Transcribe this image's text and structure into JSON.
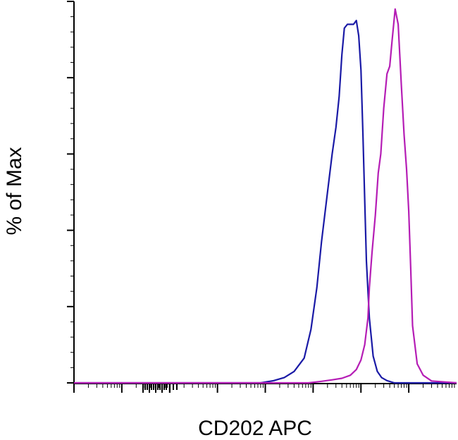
{
  "chart_data": {
    "type": "line",
    "title": "",
    "xlabel": "CD202 APC",
    "ylabel": "% of Max",
    "x_scale": "log",
    "xlim": [
      0.01,
      1000000
    ],
    "ylim": [
      0,
      100
    ],
    "grid": false,
    "legend": "none",
    "series": [
      {
        "color": "#1a1aa6",
        "x": [
          0.01,
          80,
          150,
          250,
          400,
          650,
          900,
          1200,
          1500,
          2000,
          2500,
          3000,
          3500,
          4000,
          4500,
          5200,
          6000,
          7000,
          8000,
          9000,
          10000,
          11000,
          12000,
          13000,
          15000,
          18000,
          22000,
          27000,
          35000,
          50000,
          1000000
        ],
        "y": [
          0,
          0,
          0.6,
          1.4,
          3.0,
          6.5,
          14,
          25,
          37,
          50,
          60,
          67,
          75,
          86,
          93,
          94,
          94,
          94,
          95,
          91,
          82,
          65,
          48,
          32,
          17,
          7,
          3,
          1.4,
          0.6,
          0,
          0
        ]
      },
      {
        "color": "#b51db5",
        "x": [
          0.01,
          800,
          1500,
          2500,
          4000,
          6000,
          8000,
          10000,
          12000,
          14000,
          15000,
          17000,
          20000,
          23000,
          26000,
          30000,
          35000,
          40000,
          45000,
          52000,
          60000,
          70000,
          80000,
          90000,
          100000,
          110000,
          120000,
          150000,
          200000,
          300000,
          1000000
        ],
        "y": [
          0,
          0,
          0.4,
          0.8,
          1.2,
          2.0,
          3.5,
          6,
          10,
          17,
          25,
          34,
          44,
          55,
          60,
          72,
          81,
          83,
          90,
          98,
          94,
          78,
          65,
          56,
          45,
          30,
          15,
          5,
          2,
          0.5,
          0
        ]
      }
    ]
  }
}
